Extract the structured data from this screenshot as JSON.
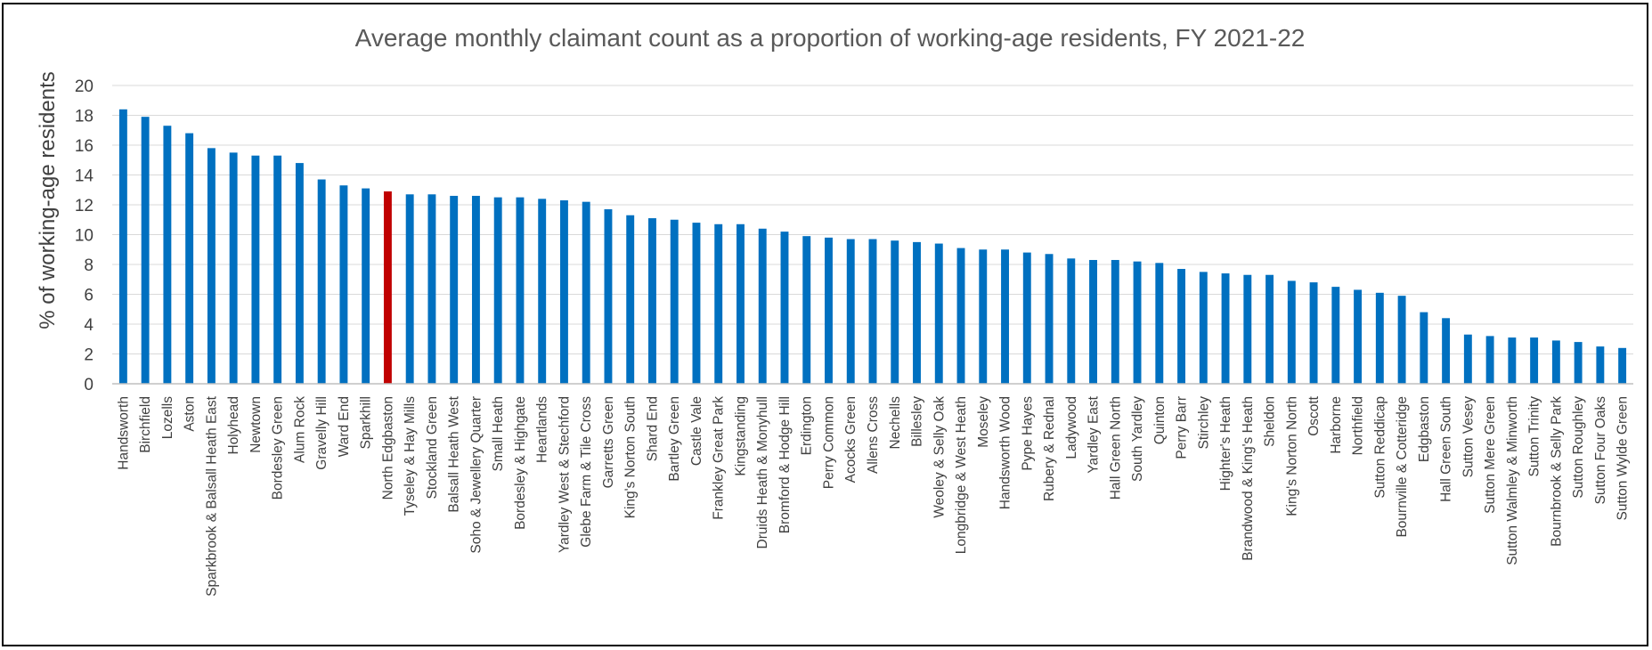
{
  "chart_data": {
    "type": "bar",
    "title": "Average monthly claimant count as a proportion of working-age residents, FY 2021-22",
    "xlabel": "",
    "ylabel": "% of working-age residents",
    "ylim": [
      0,
      20
    ],
    "yticks": [
      "0",
      "2",
      "4",
      "6",
      "8",
      "10",
      "12",
      "14",
      "16",
      "18",
      "20"
    ],
    "grid": true,
    "legend": "none",
    "bar_color": "#0070C0",
    "highlight_color": "#C00000",
    "highlight_category": "North Edgbaston",
    "categories": [
      "Handsworth",
      "Birchfield",
      "Lozells",
      "Aston",
      "Sparkbrook & Balsall Heath East",
      "Holyhead",
      "Newtown",
      "Bordesley Green",
      "Alum Rock",
      "Gravelly Hill",
      "Ward End",
      "Sparkhill",
      "North Edgbaston",
      "Tyseley & Hay Mills",
      "Stockland Green",
      "Balsall Heath West",
      "Soho & Jewellery Quarter",
      "Small Heath",
      "Bordesley & Highgate",
      "Heartlands",
      "Yardley West & Stechford",
      "Glebe Farm & Tile Cross",
      "Garretts Green",
      "King's Norton South",
      "Shard End",
      "Bartley Green",
      "Castle Vale",
      "Frankley Great Park",
      "Kingstanding",
      "Druids Heath & Monyhull",
      "Bromford & Hodge Hill",
      "Erdington",
      "Perry Common",
      "Acocks Green",
      "Allens Cross",
      "Nechells",
      "Billesley",
      "Weoley & Selly Oak",
      "Longbridge & West Heath",
      "Moseley",
      "Handsworth Wood",
      "Pype Hayes",
      "Rubery & Rednal",
      "Ladywood",
      "Yardley East",
      "Hall Green North",
      "South Yardley",
      "Quinton",
      "Perry Barr",
      "Stirchley",
      "Highter's Heath",
      "Brandwood & King's Heath",
      "Sheldon",
      "King's Norton North",
      "Oscott",
      "Harborne",
      "Northfield",
      "Sutton Reddicap",
      "Bournville & Cotteridge",
      "Edgbaston",
      "Hall Green South",
      "Sutton Vesey",
      "Sutton Mere Green",
      "Sutton Walmley & Minworth",
      "Sutton Trinity",
      "Bournbrook & Selly Park",
      "Sutton Roughley",
      "Sutton Four Oaks",
      "Sutton Wylde Green"
    ],
    "values": [
      18.4,
      17.9,
      17.3,
      16.8,
      15.8,
      15.5,
      15.3,
      15.3,
      14.8,
      13.7,
      13.3,
      13.1,
      12.9,
      12.7,
      12.7,
      12.6,
      12.6,
      12.5,
      12.5,
      12.4,
      12.3,
      12.2,
      11.7,
      11.3,
      11.1,
      11.0,
      10.8,
      10.7,
      10.7,
      10.4,
      10.2,
      9.9,
      9.8,
      9.7,
      9.7,
      9.6,
      9.5,
      9.4,
      9.1,
      9.0,
      9.0,
      8.8,
      8.7,
      8.4,
      8.3,
      8.3,
      8.2,
      8.1,
      7.7,
      7.5,
      7.4,
      7.3,
      7.3,
      6.9,
      6.8,
      6.5,
      6.3,
      6.1,
      5.9,
      4.8,
      4.4,
      3.3,
      3.2,
      3.1,
      3.1,
      2.9,
      2.8,
      2.5,
      2.4
    ]
  }
}
